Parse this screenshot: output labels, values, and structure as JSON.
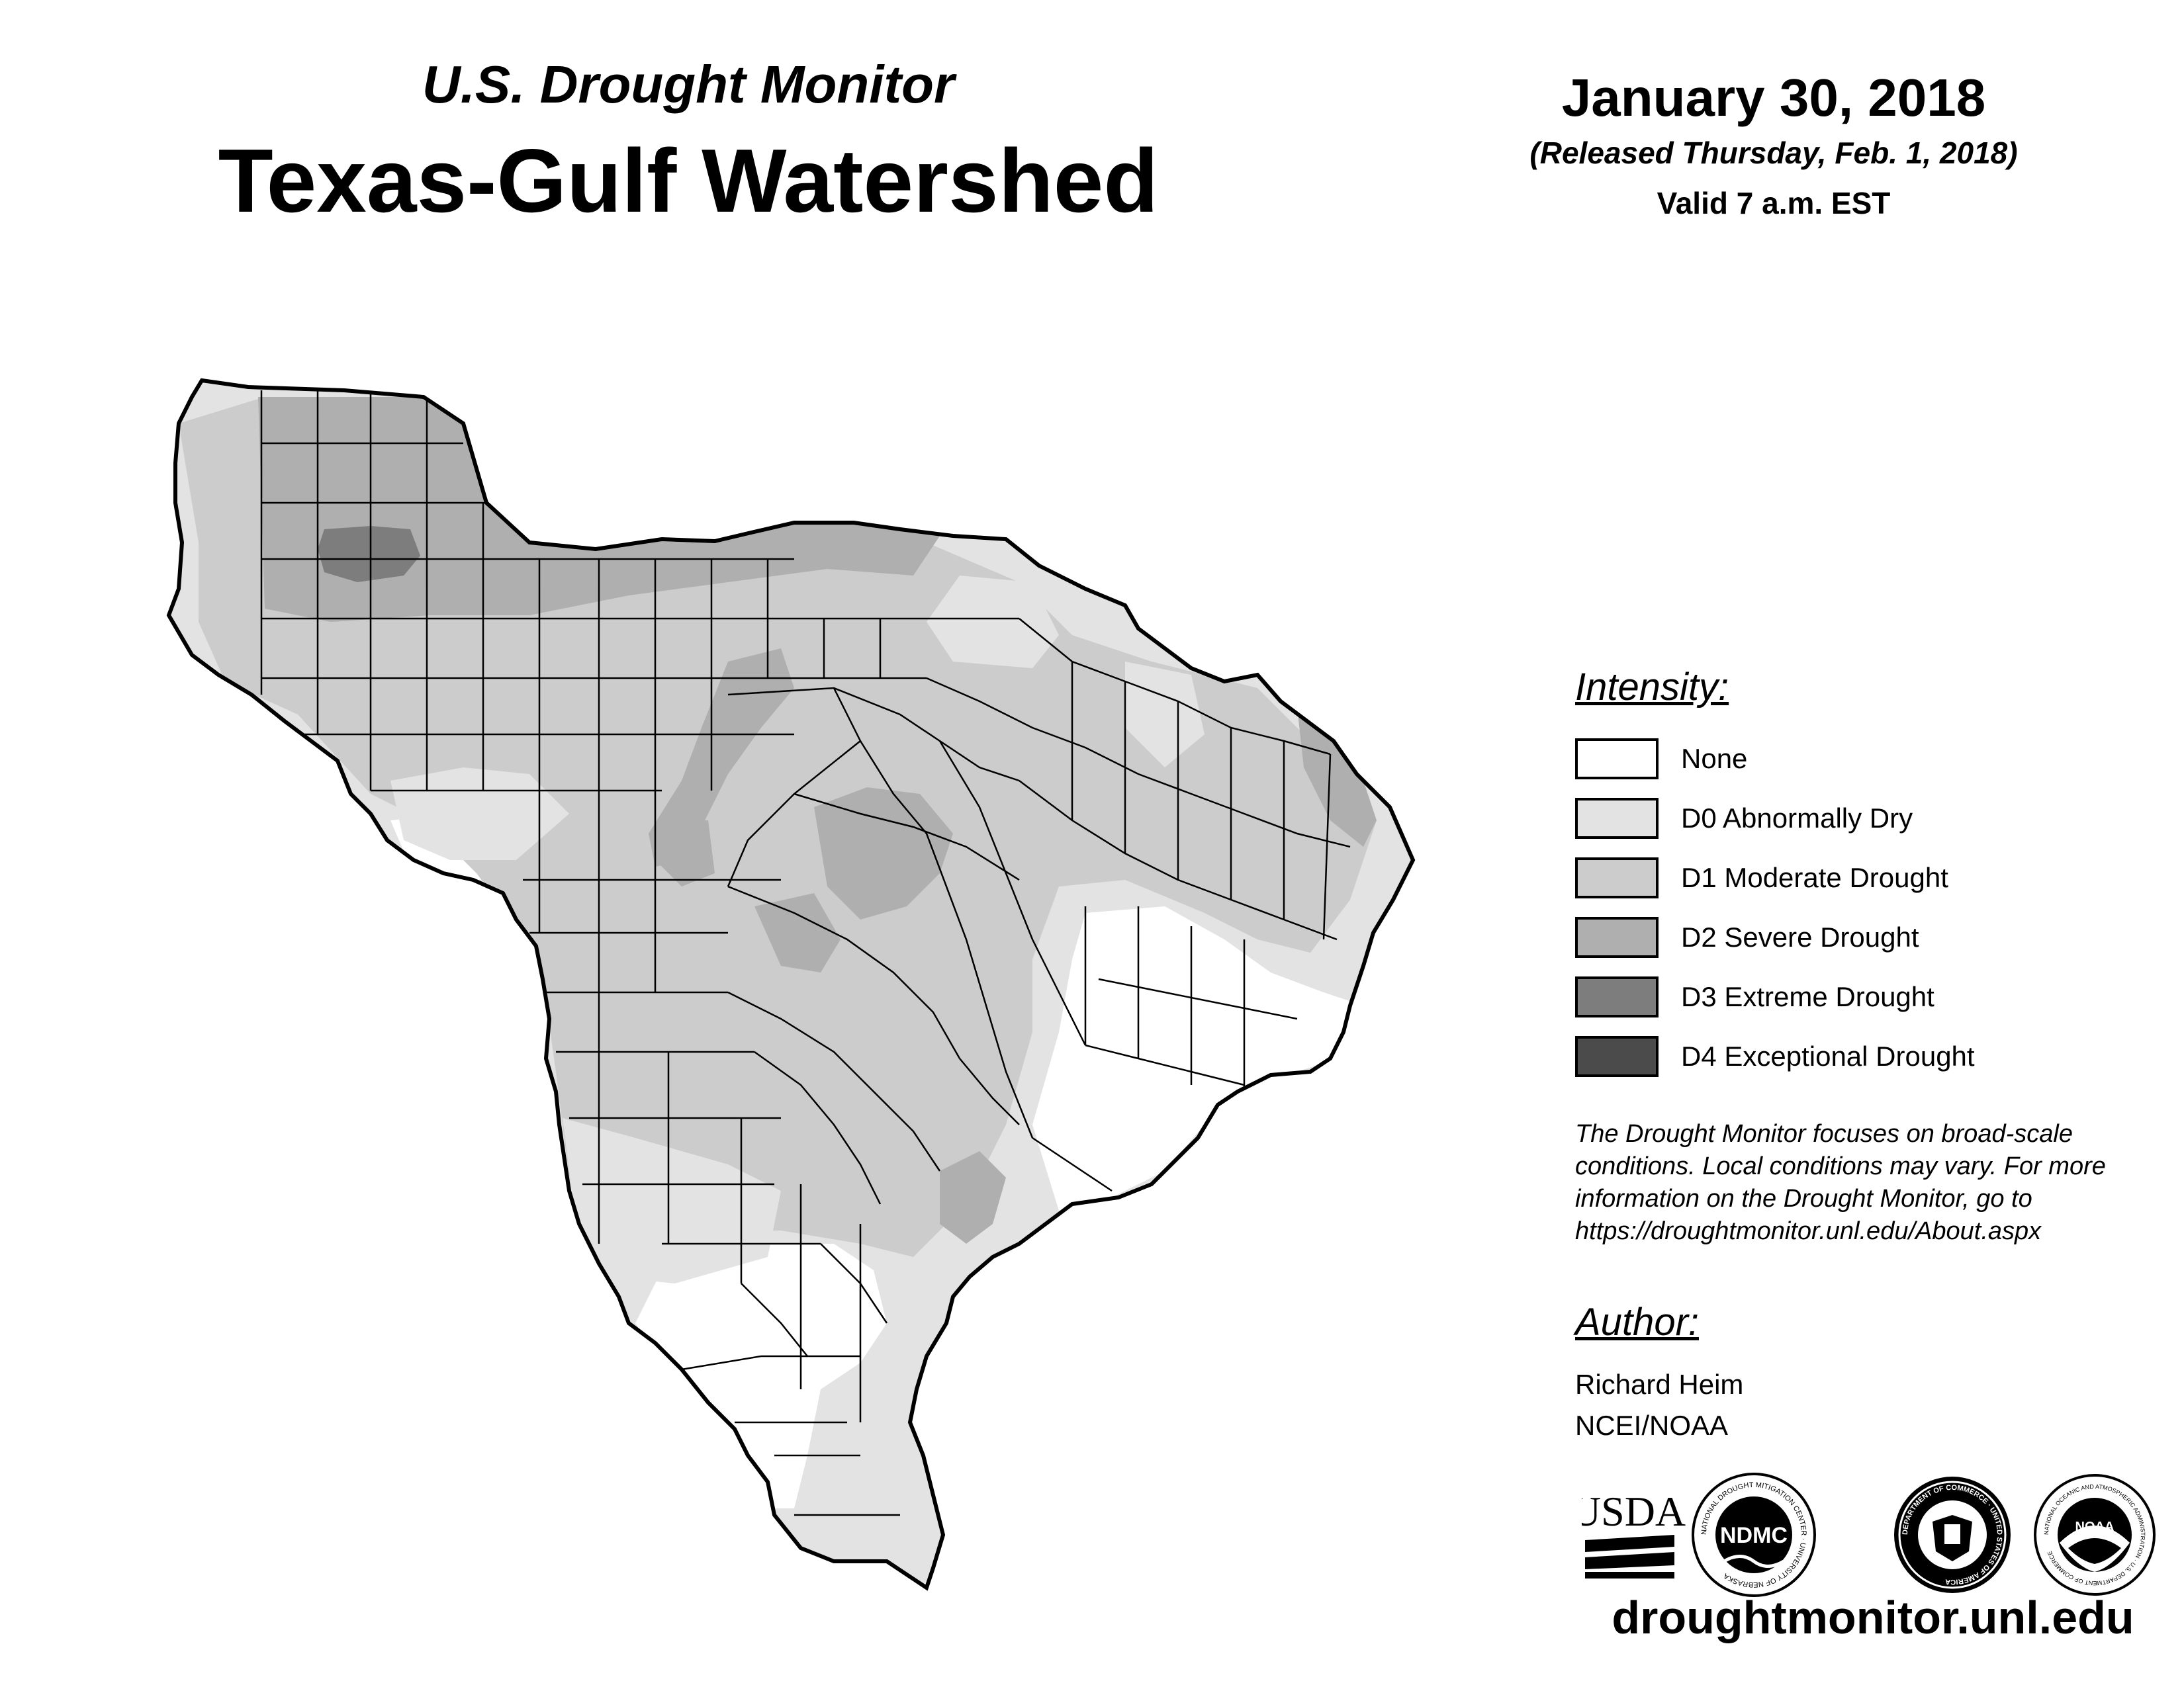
{
  "header": {
    "subtitle": "U.S. Drought Monitor",
    "title": "Texas-Gulf Watershed",
    "date": "January 30, 2018",
    "released": "(Released Thursday, Feb. 1, 2018)",
    "valid": "Valid 7 a.m. EST"
  },
  "legend": {
    "title": "Intensity:",
    "items": [
      {
        "label": "None",
        "color": "#ffffff"
      },
      {
        "label": "D0 Abnormally Dry",
        "color": "#e3e3e3"
      },
      {
        "label": "D1 Moderate Drought",
        "color": "#cccccc"
      },
      {
        "label": "D2 Severe Drought",
        "color": "#afafaf"
      },
      {
        "label": "D3 Extreme Drought",
        "color": "#7d7d7d"
      },
      {
        "label": "D4 Exceptional Drought",
        "color": "#4b4b4b"
      }
    ]
  },
  "note": "The Drought Monitor focuses on broad-scale conditions. Local conditions may vary. For more information on the Drought Monitor, go to https://droughtmonitor.unl.edu/About.aspx",
  "author": {
    "title": "Author:",
    "name": "Richard Heim",
    "org": "NCEI/NOAA"
  },
  "logos": {
    "usda": "USDA",
    "ndmc": "NDMC",
    "ndmc_ring": "NATIONAL DROUGHT MITIGATION CENTER · UNIVERSITY OF NEBRASKA",
    "commerce_ring": "DEPARTMENT OF COMMERCE · UNITED STATES OF AMERICA",
    "noaa": "NOAA",
    "noaa_ring": "NATIONAL OCEANIC AND ATMOSPHERIC ADMINISTRATION · U.S. DEPARTMENT OF COMMERCE"
  },
  "website": "droughtmonitor.unl.edu"
}
